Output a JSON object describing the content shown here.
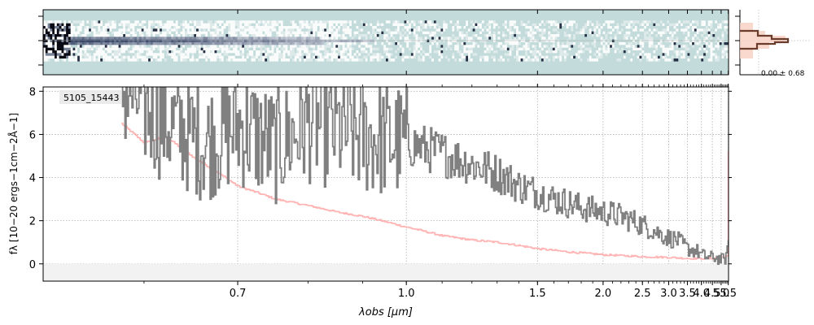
{
  "chart_data": [
    {
      "type": "heatmap",
      "panel": "spectrum-2d",
      "description_colors": {
        "background": "#c3dcdb",
        "dark": "#10182a",
        "mid": "#5a6e88"
      }
    },
    {
      "type": "line",
      "panel": "spectrum-1d",
      "id_label": "5105_15443",
      "xlabel": "λobs [μm]",
      "ylabel": "fλ [10−20 ergs−1cm−2Å−1]",
      "xlim": [
        0.52,
        5.52
      ],
      "ylim": [
        -0.8,
        8.2
      ],
      "x_scale": "reciprocal",
      "x_ticks": [
        "0.7",
        "1.0",
        "1.5",
        "2.0",
        "2.5",
        "3.0",
        "3.5",
        "4.0",
        "4.5",
        "5.0",
        "5.5"
      ],
      "y_ticks": [
        "0",
        "2",
        "4",
        "6",
        "8"
      ],
      "grid": true,
      "series": [
        {
          "color": "#808080",
          "points": [
            [
              0.58,
              8.2
            ],
            [
              0.62,
              6.6
            ],
            [
              0.66,
              5.6
            ],
            [
              0.7,
              6.4
            ],
            [
              0.75,
              5.4
            ],
            [
              0.8,
              6.6
            ],
            [
              0.85,
              6.2
            ],
            [
              0.9,
              5.9
            ],
            [
              1.0,
              5.6
            ],
            [
              1.1,
              5.1
            ],
            [
              1.2,
              4.6
            ],
            [
              1.3,
              4.2
            ],
            [
              1.4,
              3.6
            ],
            [
              1.5,
              3.3
            ],
            [
              1.6,
              3.0
            ],
            [
              1.7,
              2.8
            ],
            [
              1.8,
              2.6
            ],
            [
              2.0,
              2.4
            ],
            [
              2.2,
              2.2
            ],
            [
              2.5,
              1.8
            ],
            [
              2.8,
              1.4
            ],
            [
              3.0,
              1.2
            ],
            [
              3.2,
              1.1
            ],
            [
              3.5,
              0.7
            ],
            [
              3.8,
              0.6
            ],
            [
              4.0,
              0.4
            ],
            [
              4.3,
              0.3
            ],
            [
              4.6,
              0.3
            ],
            [
              5.0,
              0.2
            ],
            [
              5.2,
              0.2
            ],
            [
              5.4,
              0.4
            ],
            [
              5.5,
              1.5
            ]
          ]
        },
        {
          "color": "#ffb3b3",
          "points": [
            [
              0.58,
              6.5
            ],
            [
              0.6,
              5.6
            ],
            [
              0.62,
              5.9
            ],
            [
              0.65,
              4.9
            ],
            [
              0.7,
              3.6
            ],
            [
              0.75,
              3.0
            ],
            [
              0.8,
              2.7
            ],
            [
              0.85,
              2.4
            ],
            [
              0.9,
              2.2
            ],
            [
              1.0,
              1.7
            ],
            [
              1.1,
              1.3
            ],
            [
              1.2,
              1.1
            ],
            [
              1.3,
              1.0
            ],
            [
              1.5,
              0.7
            ],
            [
              1.7,
              0.55
            ],
            [
              2.0,
              0.42
            ],
            [
              2.5,
              0.33
            ],
            [
              3.0,
              0.3
            ],
            [
              3.5,
              0.25
            ],
            [
              4.0,
              0.25
            ],
            [
              4.5,
              0.25
            ],
            [
              5.0,
              0.3
            ],
            [
              5.4,
              0.35
            ],
            [
              5.48,
              1.0
            ],
            [
              5.5,
              5.2
            ]
          ]
        }
      ]
    },
    {
      "type": "bar",
      "panel": "residual-histogram",
      "annotation": "0.00 ± 0.68"
    }
  ]
}
